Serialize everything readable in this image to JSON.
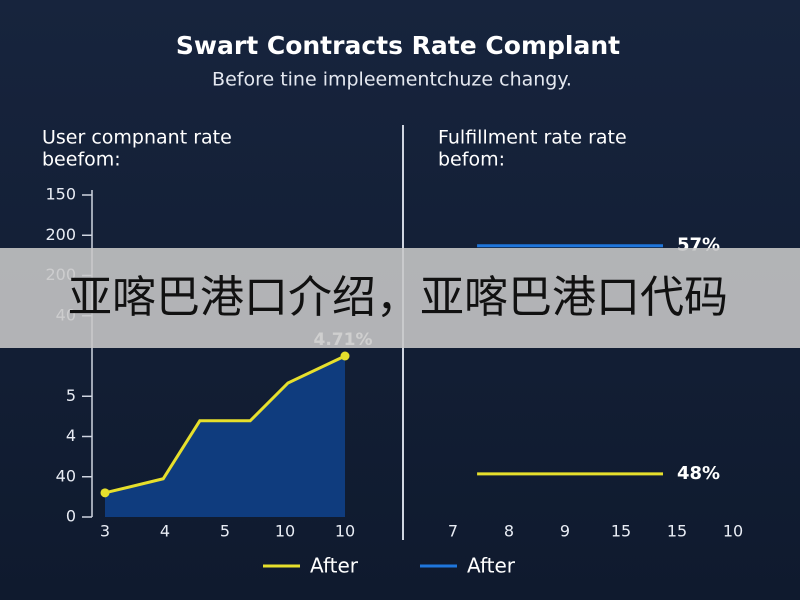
{
  "title": "Swart Contracts Rate Complant",
  "subtitle": "Before tine impleementchuze changy.",
  "overlay_text": "亚喀巴港口介绍，亚喀巴港口代码",
  "legend": [
    {
      "name": "After",
      "color": "#e6df2c"
    },
    {
      "name": "After",
      "color": "#1f76dc"
    }
  ],
  "chart_data": [
    {
      "type": "area",
      "title_lines": [
        "User compnant rate",
        "beefom:"
      ],
      "color": "#e6df2c",
      "fill": "#0f3c7e",
      "x": [
        0,
        0.97,
        1.58,
        2.42,
        3.05,
        4
      ],
      "values": [
        0.6,
        0.95,
        2.39,
        2.39,
        3.33,
        4.0
      ],
      "annotation": "4.71%",
      "xlim": [
        0,
        4
      ],
      "xticks": [
        {
          "value": 0,
          "label": "3"
        },
        {
          "value": 1,
          "label": "4"
        },
        {
          "value": 2,
          "label": "5"
        },
        {
          "value": 3,
          "label": "10"
        },
        {
          "value": 4,
          "label": "10"
        }
      ],
      "ylim": [
        0,
        8
      ],
      "yticks": [
        0,
        {
          "value": 1,
          "label": "40"
        },
        {
          "value": 2,
          "label": "4"
        },
        {
          "value": 3,
          "label": "5"
        },
        {
          "value": 5,
          "label": "40"
        },
        {
          "value": 6,
          "label": "200"
        },
        {
          "value": 7,
          "label": "200"
        },
        {
          "value": 8,
          "label": "150"
        }
      ]
    },
    {
      "type": "line",
      "title_lines": [
        "Fulfillment rate rate",
        "befom:"
      ],
      "xlim": [
        0,
        5
      ],
      "xticks": [
        {
          "value": 0,
          "label": "7"
        },
        {
          "value": 1,
          "label": "8"
        },
        {
          "value": 2,
          "label": "9"
        },
        {
          "value": 3,
          "label": "15"
        },
        {
          "value": 4,
          "label": "15"
        },
        {
          "value": 5,
          "label": "10"
        }
      ],
      "ylim": [
        46.3,
        59
      ],
      "series": [
        {
          "color": "#1f76dc",
          "x": [
            0.43,
            3.75
          ],
          "values": [
            57,
            57
          ],
          "value_labels": [
            "57%",
            "57%"
          ]
        },
        {
          "color": "#e6df2c",
          "x": [
            0.43,
            3.75
          ],
          "values": [
            48,
            48
          ],
          "value_labels": [
            "48%",
            "48%"
          ]
        }
      ]
    }
  ]
}
